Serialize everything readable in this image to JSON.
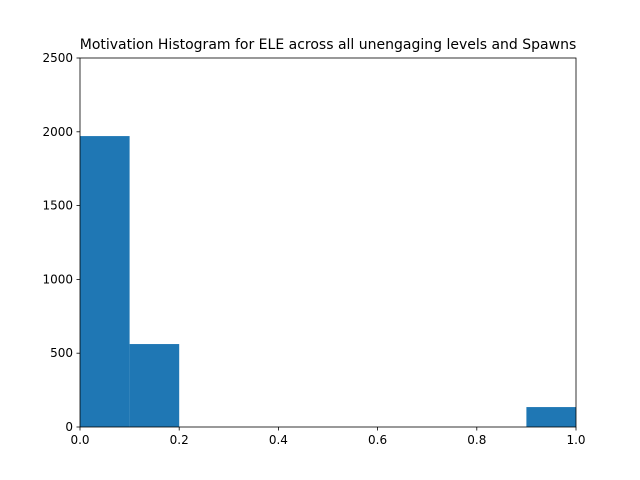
{
  "chart_data": {
    "type": "histogram",
    "title": "Motivation Histogram for ELE across all unengaging levels and Spawns",
    "bins": [
      0,
      0.1,
      0.2,
      0.3,
      0.4,
      0.5,
      0.6,
      0.7,
      0.8,
      0.9,
      1.0
    ],
    "values": [
      1971,
      562,
      0,
      0,
      0,
      0,
      0,
      0,
      0,
      135
    ],
    "color": "#1f77b4",
    "xlim": [
      0,
      1
    ],
    "xticks": [
      {
        "value": 0,
        "label": "0.0"
      },
      {
        "value": 0.2,
        "label": "0.2"
      },
      {
        "value": 0.4,
        "label": "0.4"
      },
      {
        "value": 0.6,
        "label": "0.6"
      },
      {
        "value": 0.8,
        "label": "0.8"
      },
      {
        "value": 1,
        "label": "1.0"
      }
    ],
    "ylim": [
      0,
      2500
    ],
    "yticks": [
      0,
      500,
      1000,
      1500,
      2000,
      2500
    ]
  }
}
